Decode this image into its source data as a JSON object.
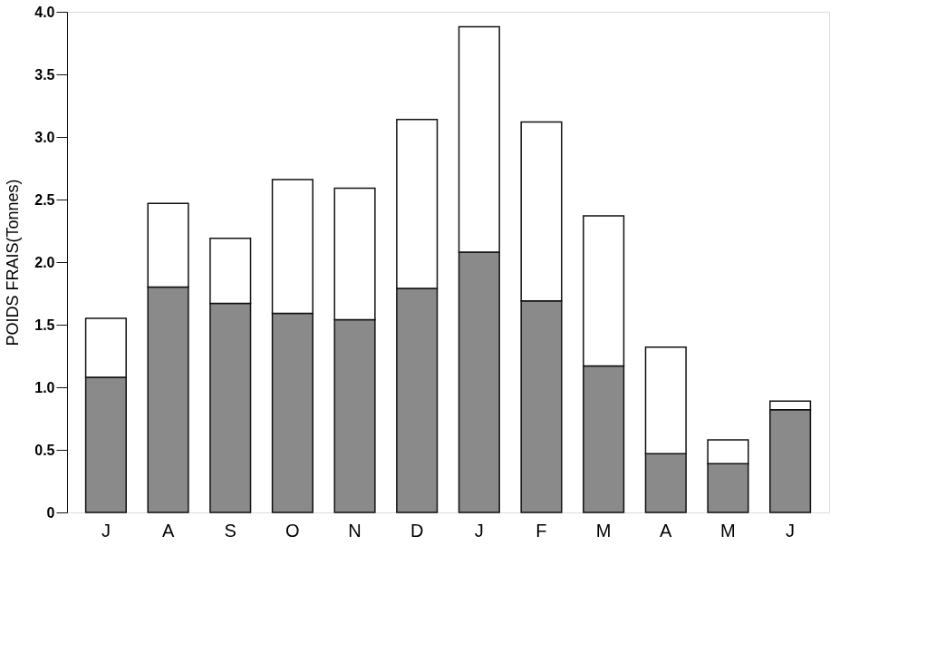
{
  "chart_data": {
    "type": "bar",
    "ylabel": "POIDS FRAIS(Tonnes)",
    "categories": [
      "J",
      "A",
      "S",
      "O",
      "N",
      "D",
      "J",
      "F",
      "M",
      "A",
      "M",
      "J"
    ],
    "stacked": true,
    "legend": false,
    "grid": false,
    "series": [
      {
        "color": "#8a8a8a",
        "values": [
          1.08,
          1.8,
          1.67,
          1.59,
          1.54,
          1.79,
          2.08,
          1.69,
          1.17,
          0.47,
          0.39,
          0.82
        ]
      },
      {
        "color": "#ffffff",
        "values": [
          0.47,
          0.67,
          0.52,
          1.07,
          1.05,
          1.35,
          1.8,
          1.43,
          1.2,
          0.85,
          0.19,
          0.07
        ]
      }
    ],
    "ylim": [
      0,
      4
    ],
    "yticks": [
      0,
      0.5,
      {
        "value": 1,
        "label": "1.0"
      },
      1.5,
      {
        "value": 2,
        "label": "2.0"
      },
      2.5,
      {
        "value": 3,
        "label": "3.0"
      },
      3.5,
      {
        "value": 4,
        "label": "4.0"
      }
    ]
  }
}
